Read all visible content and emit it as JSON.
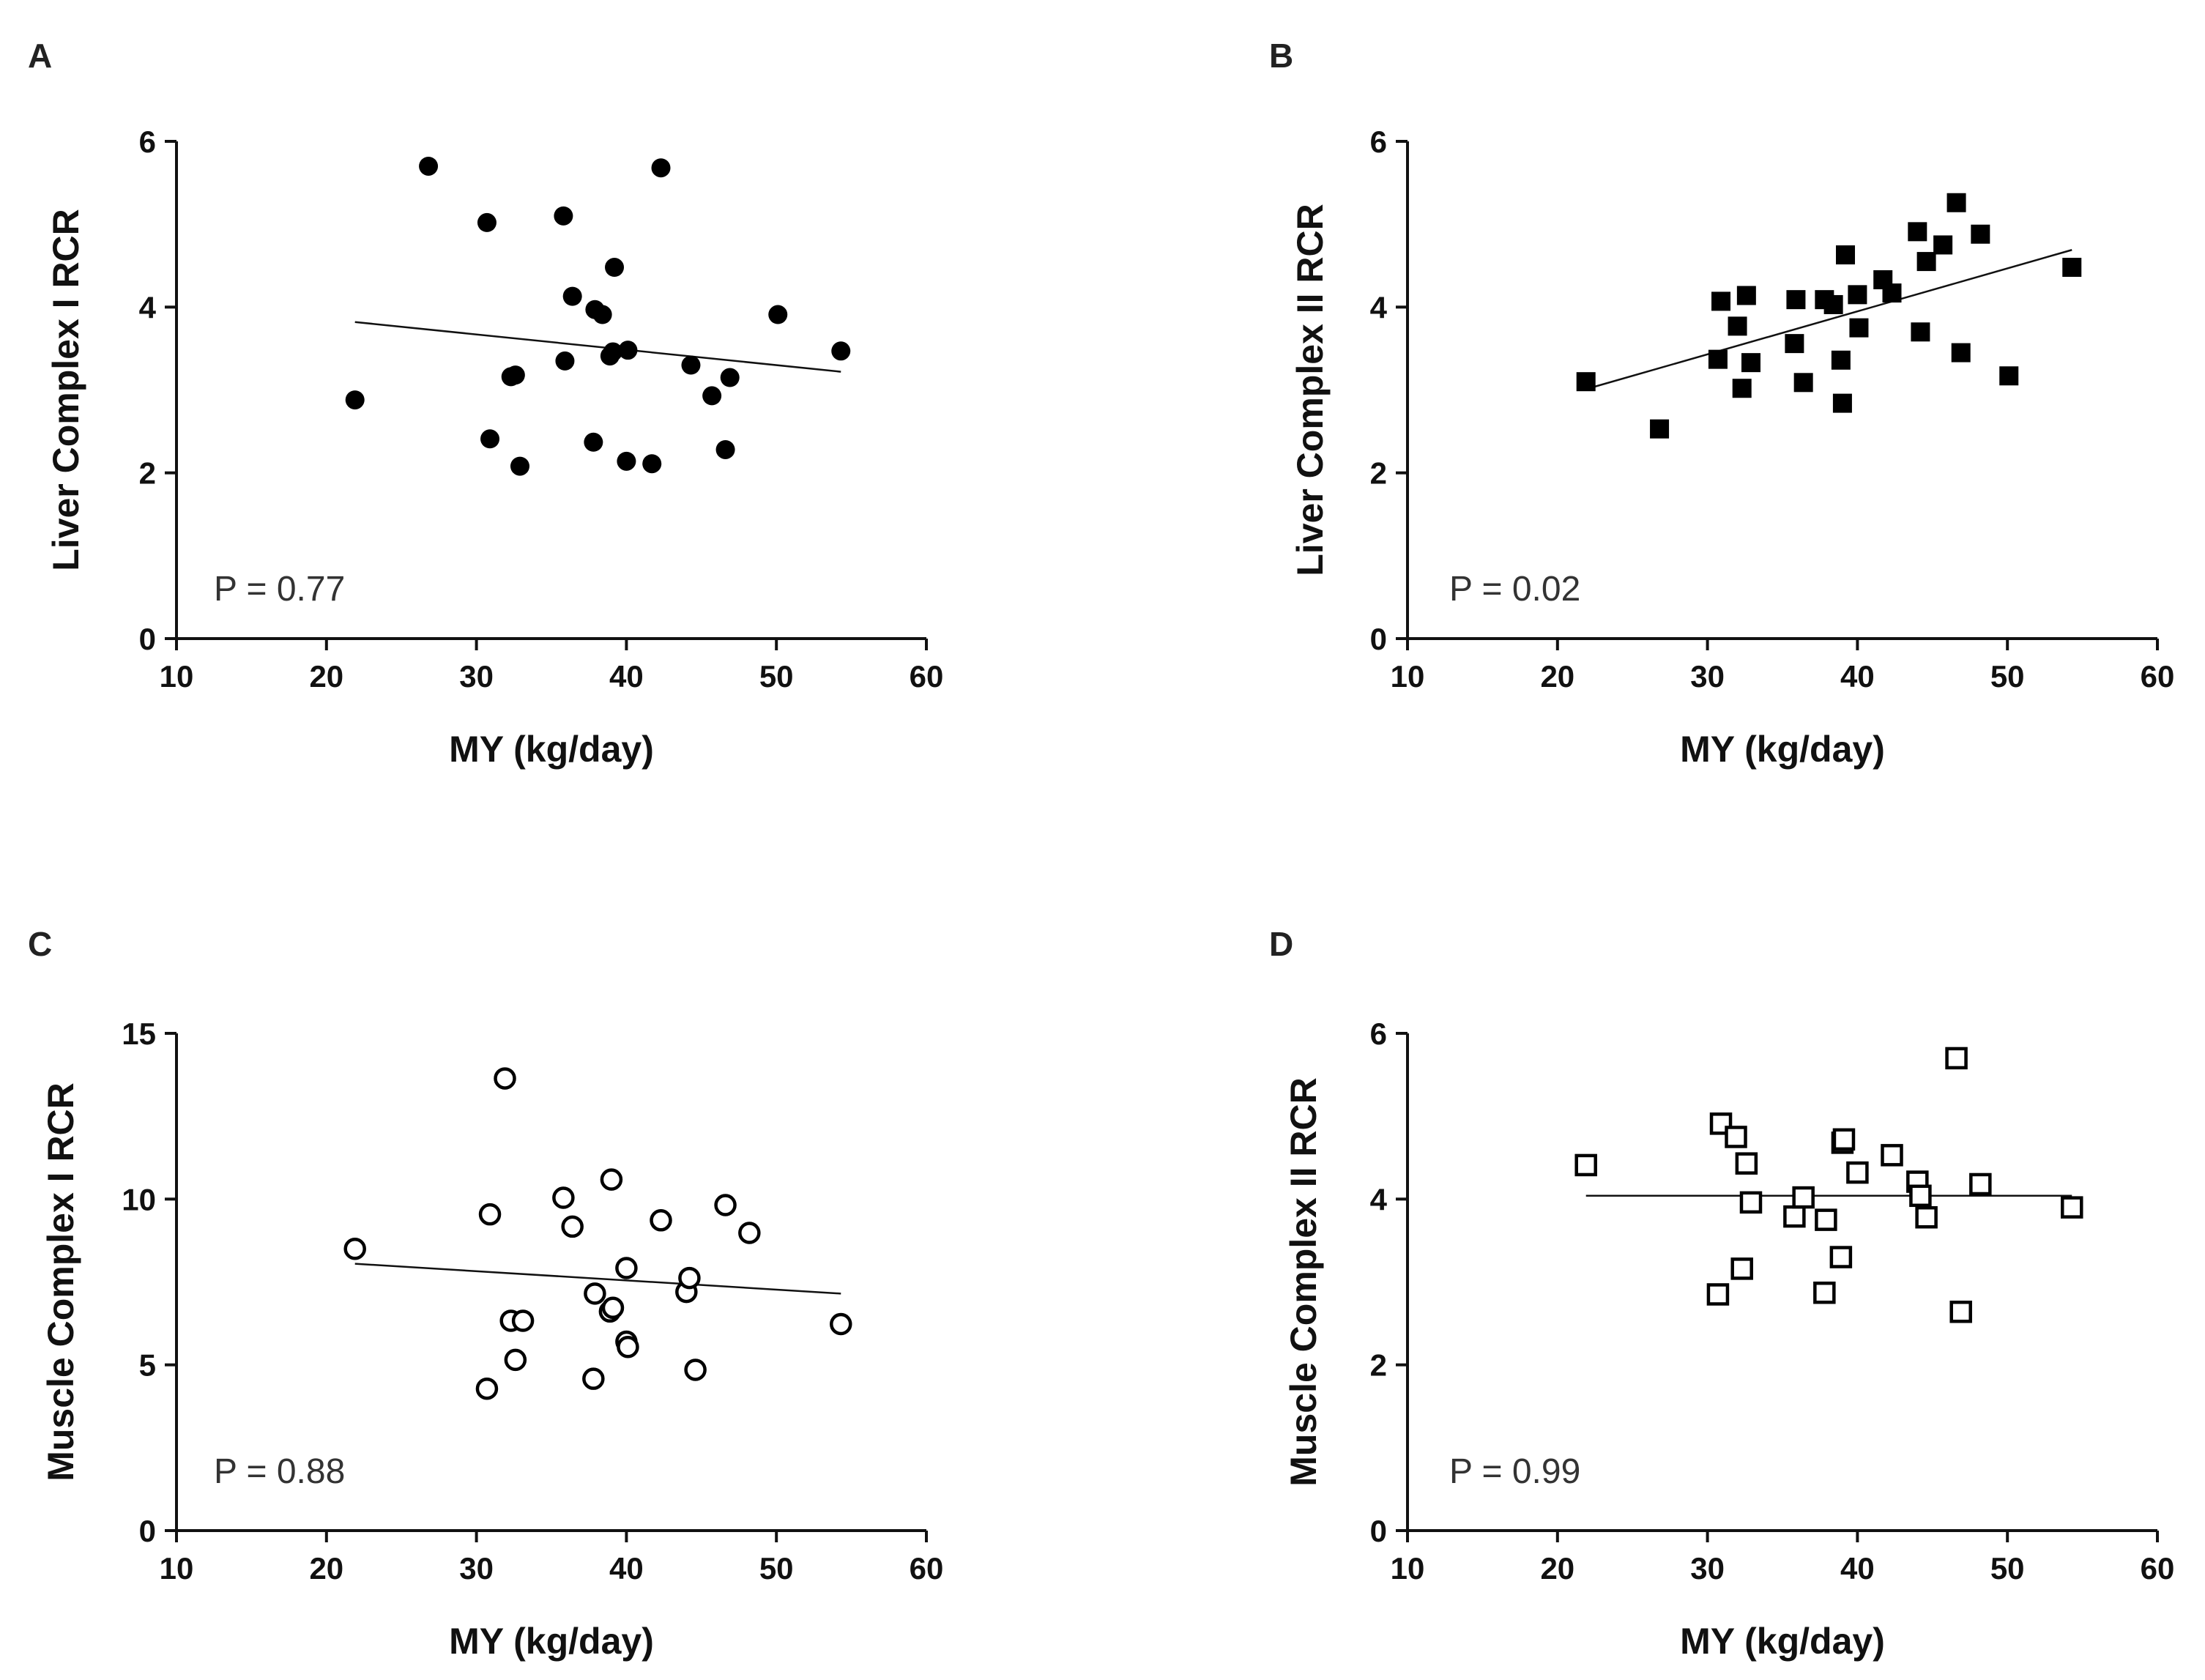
{
  "chart_data": [
    {
      "type": "scatter",
      "panel": "A",
      "xlabel": "MY (kg/day)",
      "ylabel": "Liver Complex I RCR",
      "xlim": [
        10,
        60
      ],
      "ylim": [
        0,
        6
      ],
      "xticks": [
        10,
        20,
        30,
        40,
        50,
        60
      ],
      "yticks": [
        0,
        2,
        4,
        6
      ],
      "marker": "filled-circle",
      "annotation": "P = 0.77",
      "fit": [
        [
          21.9,
          3.82
        ],
        [
          54.3,
          3.22
        ]
      ],
      "points": [
        [
          21.9,
          2.88
        ],
        [
          26.8,
          5.7
        ],
        [
          30.7,
          5.02
        ],
        [
          30.9,
          2.41
        ],
        [
          32.3,
          3.16
        ],
        [
          32.6,
          3.18
        ],
        [
          32.9,
          2.08
        ],
        [
          35.8,
          5.1
        ],
        [
          35.9,
          3.35
        ],
        [
          36.4,
          4.13
        ],
        [
          37.8,
          2.37
        ],
        [
          37.9,
          3.97
        ],
        [
          38.4,
          3.91
        ],
        [
          38.9,
          3.41
        ],
        [
          39.1,
          3.46
        ],
        [
          39.2,
          4.48
        ],
        [
          40.0,
          2.14
        ],
        [
          40.1,
          3.48
        ],
        [
          41.7,
          2.11
        ],
        [
          42.3,
          5.68
        ],
        [
          44.3,
          3.3
        ],
        [
          45.7,
          2.93
        ],
        [
          46.6,
          2.28
        ],
        [
          46.9,
          3.15
        ],
        [
          50.1,
          3.91
        ],
        [
          54.3,
          3.47
        ]
      ]
    },
    {
      "type": "scatter",
      "panel": "B",
      "xlabel": "MY (kg/day)",
      "ylabel": "Liver Complex II RCR",
      "xlim": [
        10,
        60
      ],
      "ylim": [
        0,
        6
      ],
      "xticks": [
        10,
        20,
        30,
        40,
        50,
        60
      ],
      "yticks": [
        0,
        2,
        4,
        6
      ],
      "marker": "filled-square",
      "annotation": "P = 0.02",
      "fit": [
        [
          21.9,
          3.01
        ],
        [
          54.3,
          4.69
        ]
      ],
      "points": [
        [
          21.9,
          3.1
        ],
        [
          26.8,
          2.53
        ],
        [
          30.7,
          3.37
        ],
        [
          30.9,
          4.07
        ],
        [
          32.0,
          3.77
        ],
        [
          32.3,
          3.02
        ],
        [
          32.6,
          4.14
        ],
        [
          32.9,
          3.33
        ],
        [
          35.8,
          3.56
        ],
        [
          35.9,
          4.09
        ],
        [
          36.4,
          3.09
        ],
        [
          37.8,
          4.09
        ],
        [
          38.4,
          4.03
        ],
        [
          38.9,
          3.36
        ],
        [
          39.0,
          2.84
        ],
        [
          39.2,
          4.63
        ],
        [
          40.0,
          4.15
        ],
        [
          40.1,
          3.75
        ],
        [
          41.7,
          4.33
        ],
        [
          42.3,
          4.17
        ],
        [
          44.0,
          4.91
        ],
        [
          44.2,
          3.7
        ],
        [
          44.6,
          4.55
        ],
        [
          45.7,
          4.75
        ],
        [
          46.6,
          5.26
        ],
        [
          46.9,
          3.45
        ],
        [
          48.2,
          4.88
        ],
        [
          50.1,
          3.17
        ],
        [
          54.3,
          4.48
        ]
      ]
    },
    {
      "type": "scatter",
      "panel": "C",
      "xlabel": "MY (kg/day)",
      "ylabel": "Muscle Complex I RCR",
      "xlim": [
        10,
        60
      ],
      "ylim": [
        0,
        15
      ],
      "xticks": [
        10,
        20,
        30,
        40,
        50,
        60
      ],
      "yticks": [
        0,
        5,
        10,
        15
      ],
      "marker": "open-circle",
      "annotation": "P = 0.88",
      "fit": [
        [
          21.9,
          8.05
        ],
        [
          54.3,
          7.15
        ]
      ],
      "points": [
        [
          21.9,
          8.5
        ],
        [
          30.7,
          4.28
        ],
        [
          30.9,
          9.54
        ],
        [
          31.9,
          13.64
        ],
        [
          32.3,
          6.33
        ],
        [
          32.6,
          5.15
        ],
        [
          33.1,
          6.33
        ],
        [
          35.8,
          10.04
        ],
        [
          36.4,
          9.17
        ],
        [
          37.8,
          4.58
        ],
        [
          37.9,
          7.15
        ],
        [
          38.9,
          6.61
        ],
        [
          39.0,
          10.59
        ],
        [
          39.1,
          6.72
        ],
        [
          40.0,
          7.92
        ],
        [
          40.0,
          5.7
        ],
        [
          40.1,
          5.54
        ],
        [
          42.3,
          9.36
        ],
        [
          44.0,
          7.2
        ],
        [
          44.2,
          7.62
        ],
        [
          44.6,
          4.85
        ],
        [
          46.6,
          9.82
        ],
        [
          48.2,
          8.98
        ],
        [
          54.3,
          6.23
        ]
      ]
    },
    {
      "type": "scatter",
      "panel": "D",
      "xlabel": "MY (kg/day)",
      "ylabel": "Muscle Complex II RCR",
      "xlim": [
        10,
        60
      ],
      "ylim": [
        0,
        6
      ],
      "xticks": [
        10,
        20,
        30,
        40,
        50,
        60
      ],
      "yticks": [
        0,
        2,
        4,
        6
      ],
      "marker": "open-square",
      "annotation": "P = 0.99",
      "fit": [
        [
          21.9,
          4.04
        ],
        [
          54.3,
          4.04
        ]
      ],
      "points": [
        [
          21.9,
          4.41
        ],
        [
          30.7,
          2.85
        ],
        [
          30.9,
          4.91
        ],
        [
          31.9,
          4.75
        ],
        [
          32.3,
          3.16
        ],
        [
          32.6,
          4.43
        ],
        [
          32.9,
          3.96
        ],
        [
          35.8,
          3.79
        ],
        [
          36.4,
          4.02
        ],
        [
          37.8,
          2.87
        ],
        [
          37.9,
          3.75
        ],
        [
          38.9,
          3.3
        ],
        [
          39.0,
          4.68
        ],
        [
          39.1,
          4.72
        ],
        [
          40.0,
          4.32
        ],
        [
          42.3,
          4.53
        ],
        [
          44.0,
          4.21
        ],
        [
          44.2,
          4.04
        ],
        [
          44.6,
          3.78
        ],
        [
          46.6,
          5.7
        ],
        [
          46.9,
          2.64
        ],
        [
          48.2,
          4.18
        ],
        [
          54.3,
          3.9
        ]
      ]
    }
  ]
}
